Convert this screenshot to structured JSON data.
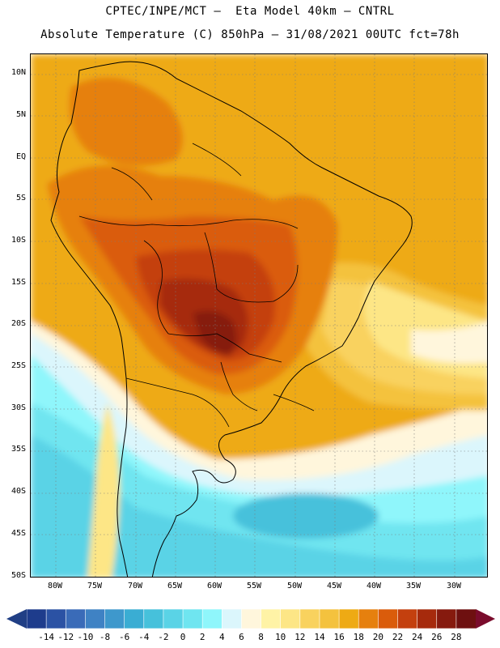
{
  "title": {
    "line1": "CPTEC/INPE/MCT –  Eta Model 40km – CNTRL",
    "line2": "Absolute Temperature (C) 850hPa – 31/08/2021 00UTC fct=78h"
  },
  "axes": {
    "lat_labels": [
      "10N",
      "5N",
      "EQ",
      "5S",
      "10S",
      "15S",
      "20S",
      "25S",
      "30S",
      "35S",
      "40S",
      "45S",
      "50S"
    ],
    "lon_labels": [
      "80W",
      "75W",
      "70W",
      "65W",
      "60W",
      "55W",
      "50W",
      "45W",
      "40W",
      "35W",
      "30W"
    ]
  },
  "colorbar": {
    "labels": [
      "-14",
      "-12",
      "-10",
      "-8",
      "-6",
      "-4",
      "-2",
      "0",
      "2",
      "4",
      "6",
      "8",
      "10",
      "12",
      "14",
      "16",
      "18",
      "20",
      "22",
      "24",
      "26",
      "28"
    ],
    "colors": [
      "#1e3c8c",
      "#2b52a4",
      "#3a6bb8",
      "#3f82c4",
      "#3e98cc",
      "#3aadd3",
      "#46c1db",
      "#5ad3e6",
      "#6fe5f0",
      "#8ff6fb",
      "#dbf6fc",
      "#fff6dc",
      "#fff3a6",
      "#fde686",
      "#f9d25e",
      "#f4c23e",
      "#eeaa14",
      "#e6800e",
      "#da5c0b",
      "#c4400e",
      "#a62a0c",
      "#861a0e",
      "#6e1010"
    ],
    "low_color": "#213f85",
    "high_color": "#7a0c2c"
  },
  "map": {
    "field_colors": {
      "t28": "#861a0e",
      "t26": "#a62a0c",
      "t24": "#c4400e",
      "t22": "#da5c0b",
      "t20": "#e6800e",
      "t18": "#eeaa14",
      "t16": "#f4c23e",
      "t14": "#f9d25e",
      "t12": "#fde686",
      "t10": "#fff3a6",
      "t8": "#fff6dc",
      "t6": "#dbf6fc",
      "t4": "#8ff6fb",
      "t2": "#6fe5f0",
      "t0": "#5ad3e6",
      "tm2": "#46c1db"
    }
  }
}
